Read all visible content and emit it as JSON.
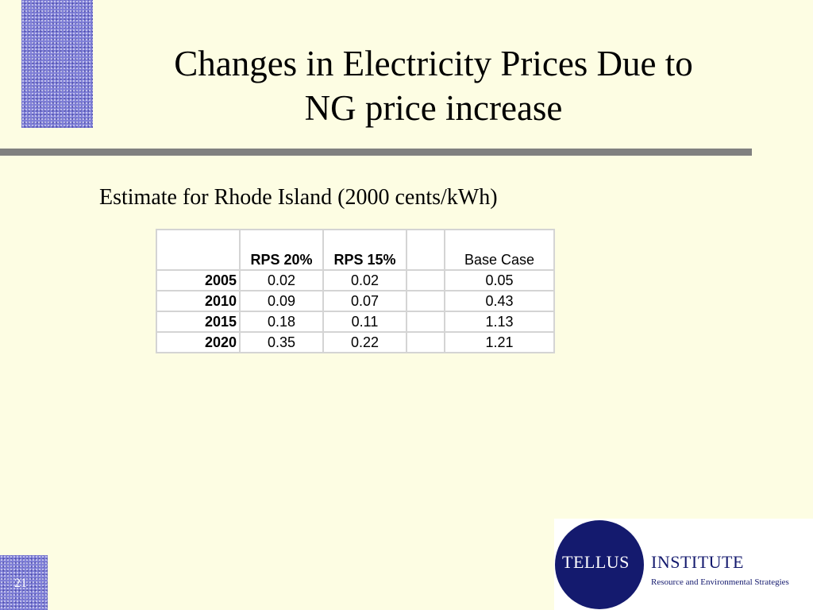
{
  "slide": {
    "title_line1": "Changes in Electricity Prices Due to",
    "title_line2": "NG price increase",
    "subtitle": "Estimate for Rhode Island (2000 cents/kWh)",
    "number": "21"
  },
  "table": {
    "headers": [
      "",
      "RPS 20%",
      "RPS 15%",
      "",
      "Base Case"
    ],
    "rows": [
      {
        "year": "2005",
        "rps20": "0.02",
        "rps15": "0.02",
        "blank": "",
        "base": "0.05"
      },
      {
        "year": "2010",
        "rps20": "0.09",
        "rps15": "0.07",
        "blank": "",
        "base": "0.43"
      },
      {
        "year": "2015",
        "rps20": "0.18",
        "rps15": "0.11",
        "blank": "",
        "base": "1.13"
      },
      {
        "year": "2020",
        "rps20": "0.35",
        "rps15": "0.22",
        "blank": "",
        "base": "1.21"
      }
    ]
  },
  "logo": {
    "word1": "TELLUS",
    "word2": "INSTITUTE",
    "tagline": "Resource and Environmental Strategies"
  },
  "colors": {
    "background": "#fdfde3",
    "accent_pattern": "#7d7dd6",
    "rule": "#808080",
    "logo_navy": "#141a6e"
  }
}
